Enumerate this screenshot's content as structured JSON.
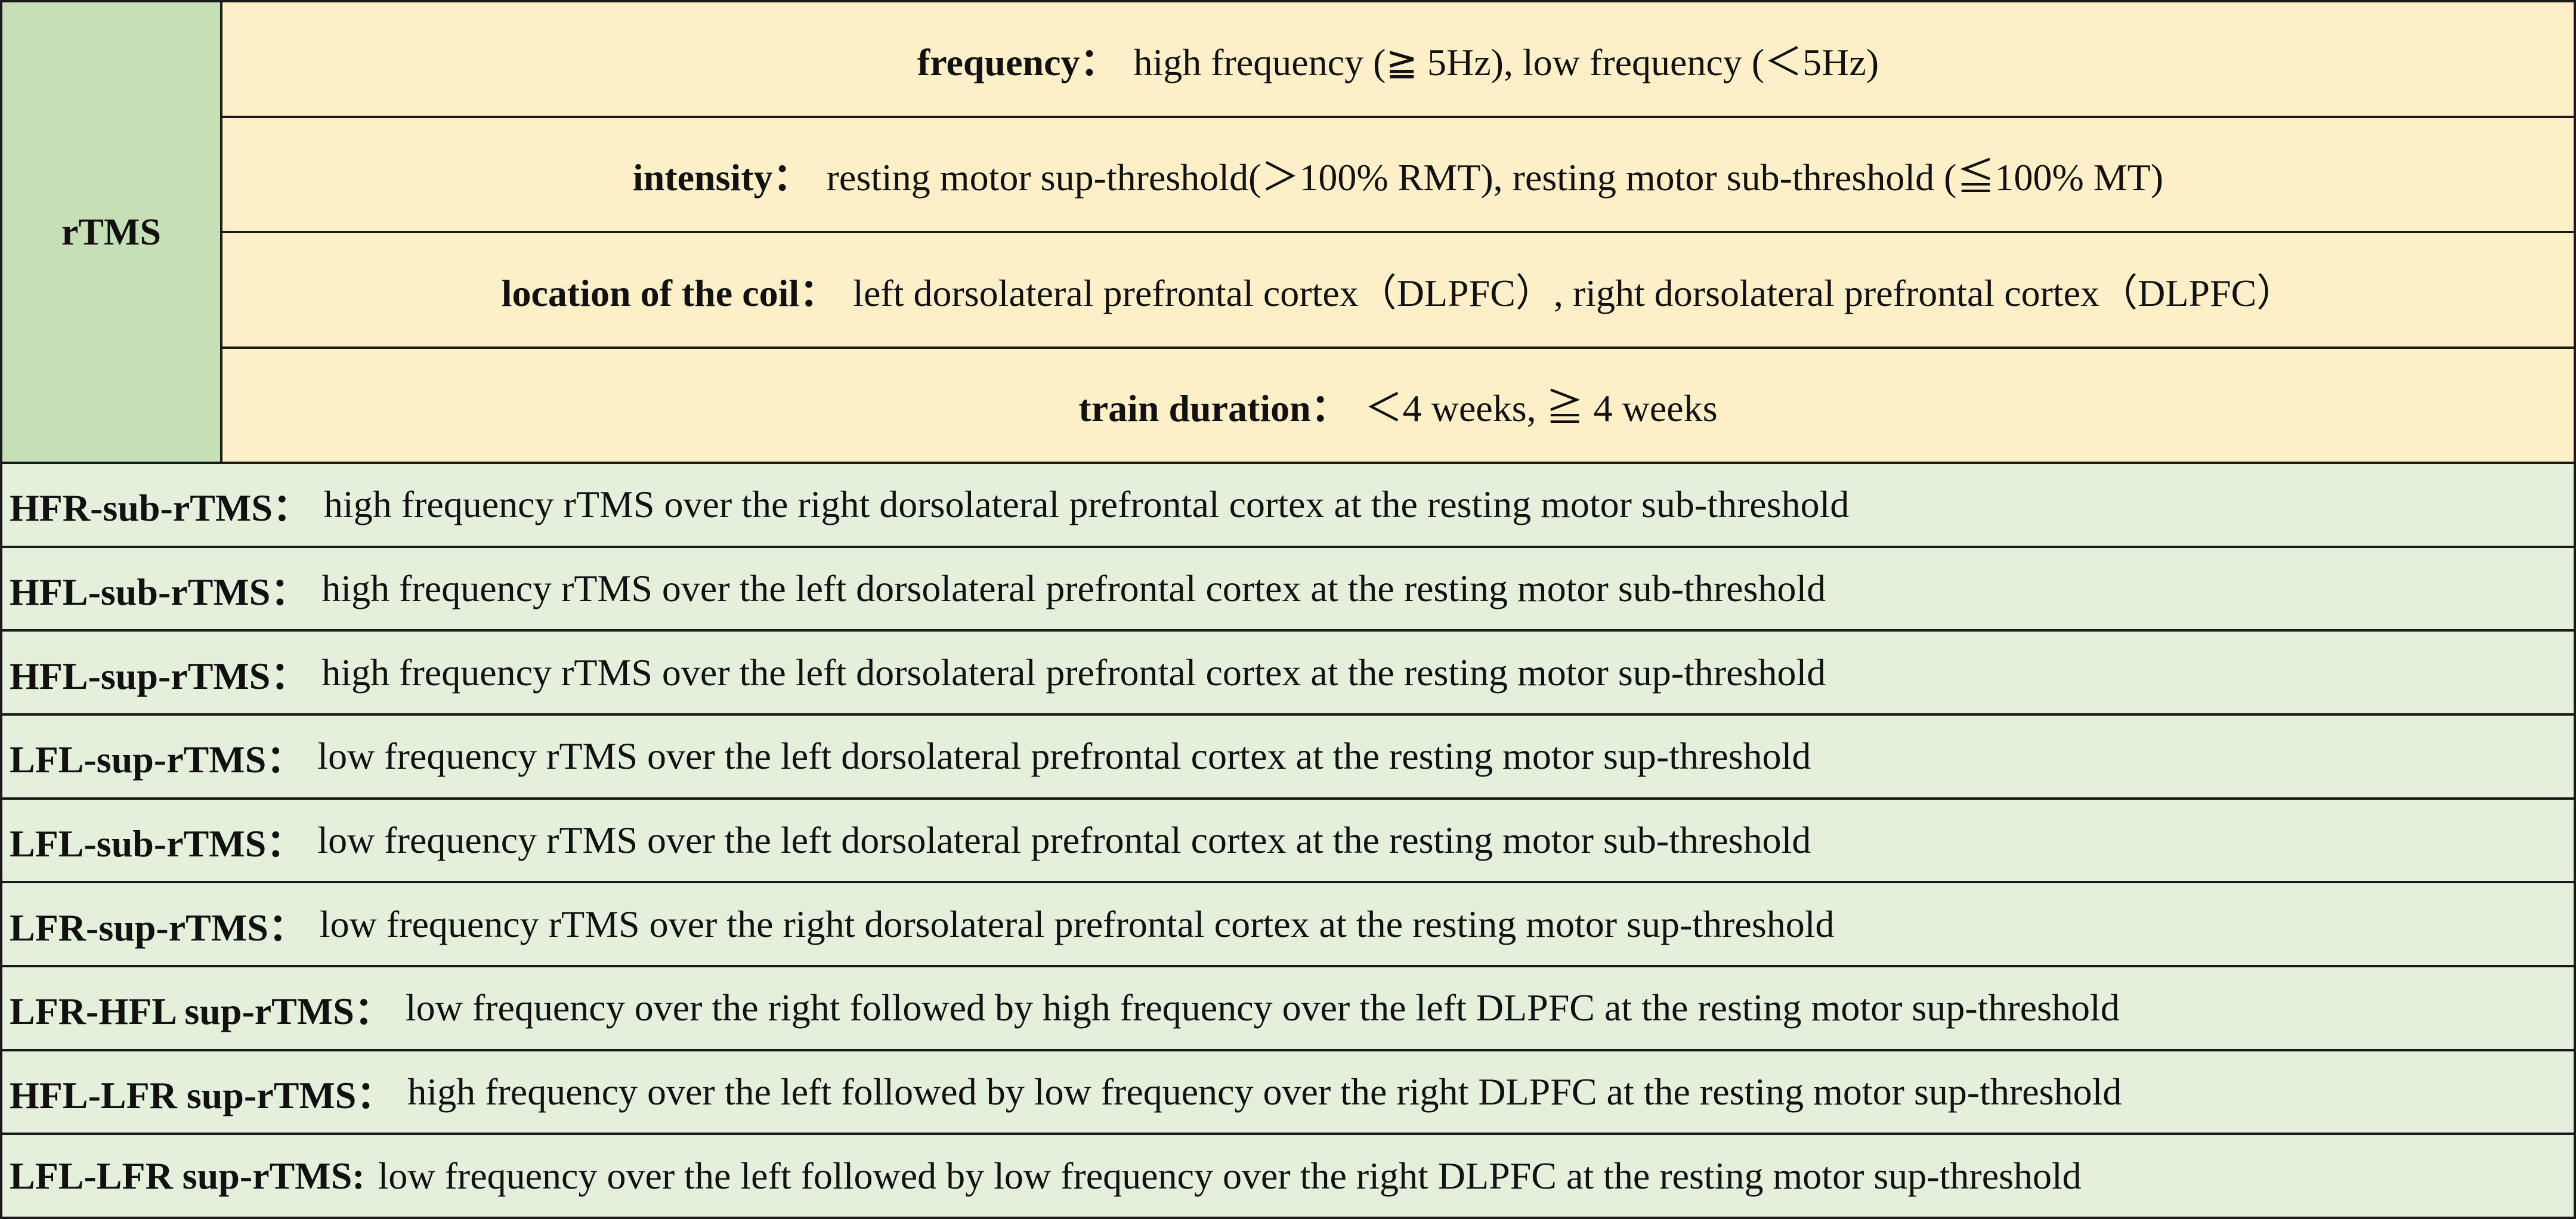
{
  "top": {
    "row_header": "rTMS",
    "params": [
      {
        "label": "frequency：",
        "text": "high frequency (≧ 5Hz), low frequency (＜5Hz)"
      },
      {
        "label": "intensity：",
        "text": "resting motor sup-threshold(＞100% RMT),  resting motor sub-threshold (≦100% MT)"
      },
      {
        "label": "location of the coil：",
        "text": "left dorsolateral prefrontal cortex（DLPFC）, right dorsolateral prefrontal cortex（DLPFC）"
      },
      {
        "label": "train duration：",
        "text": "＜4 weeks,    ≧ 4 weeks"
      }
    ]
  },
  "definitions": [
    {
      "term": "HFR-sub-rTMS：",
      "text": "high frequency rTMS over the right dorsolateral prefrontal cortex at the resting motor sub-threshold"
    },
    {
      "term": "HFL-sub-rTMS：",
      "text": "high frequency rTMS over the left dorsolateral prefrontal cortex at the resting motor sub-threshold"
    },
    {
      "term": "HFL-sup-rTMS：",
      "text": "high frequency rTMS over the left dorsolateral prefrontal cortex at the resting motor sup-threshold"
    },
    {
      "term": "LFL-sup-rTMS：",
      "text": "low frequency rTMS over the left dorsolateral prefrontal cortex at the resting motor sup-threshold"
    },
    {
      "term": "LFL-sub-rTMS：",
      "text": "low frequency rTMS over the left dorsolateral prefrontal cortex at the resting motor sub-threshold"
    },
    {
      "term": "LFR-sup-rTMS：",
      "text": "low frequency rTMS over the right dorsolateral prefrontal cortex at the resting motor sup-threshold"
    },
    {
      "term": "LFR-HFL sup-rTMS：",
      "text": "low frequency over the right followed by high frequency over the left DLPFC at the resting motor sup-threshold"
    },
    {
      "term": "HFL-LFR sup-rTMS：",
      "text": "high frequency over the left followed by low frequency over the right DLPFC at the resting motor sup-threshold"
    },
    {
      "term": "LFL-LFR sup-rTMS:",
      "text": "low frequency over the left followed by low frequency over the right DLPFC at the resting motor sup-threshold"
    }
  ],
  "colors": {
    "header_green": "#c7dfb7",
    "param_yellow": "#fdefc8",
    "definition_green": "#e4efdc",
    "border": "#1a1a1a"
  }
}
